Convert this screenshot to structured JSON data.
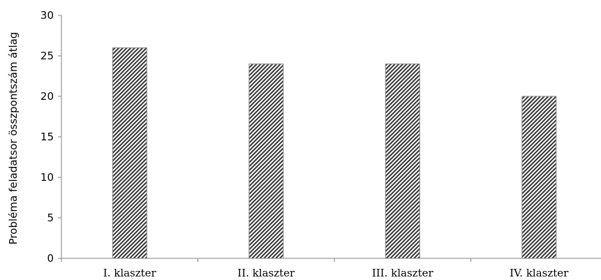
{
  "chart_data": {
    "type": "bar",
    "title": "",
    "xlabel": "",
    "ylabel": "Probléma feladatsor összpontszám átlag",
    "categories": [
      "I. klaszter",
      "II. klaszter",
      "III. klaszter",
      "IV. klaszter"
    ],
    "values": [
      26,
      24,
      24,
      20
    ],
    "ylim": [
      0,
      30
    ],
    "yticks": [
      0,
      5,
      10,
      15,
      20,
      25,
      30
    ],
    "grid": false,
    "legend": "none",
    "bar_fill": "diagonal-hatch",
    "bar_color": "#000000",
    "axis_color": "#808080"
  }
}
